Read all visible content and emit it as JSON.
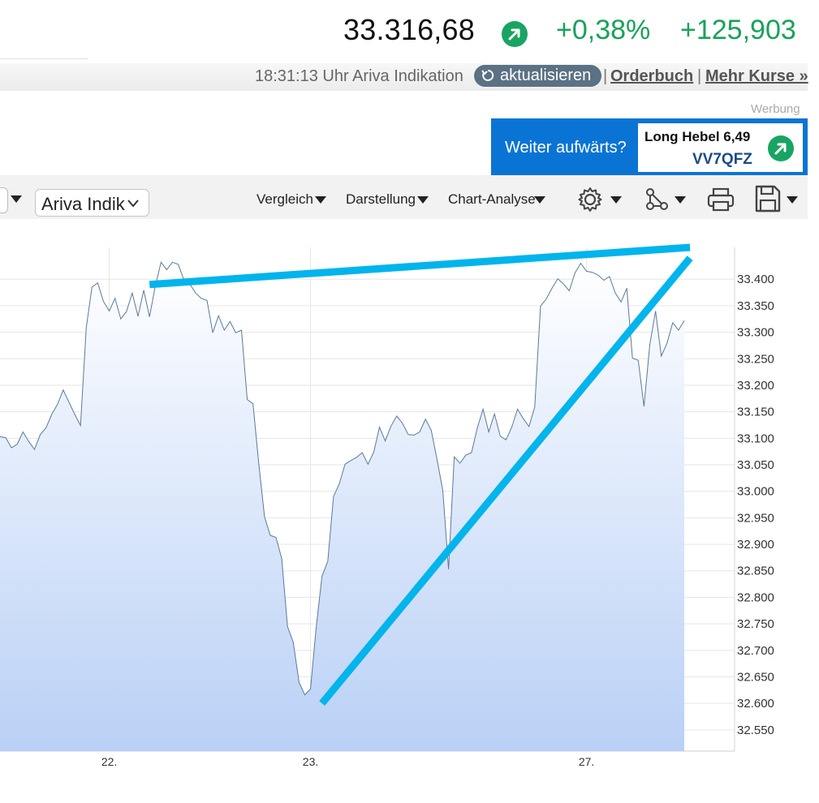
{
  "quote": {
    "price": "33.316,68",
    "change_percent": "+0,38%",
    "change_absolute": "+125,903",
    "trend_icon": "arrow-up-right-icon",
    "positive_color": "#1aa15a"
  },
  "info_bar": {
    "timestamp": "18:31:13 Uhr Ariva Indikation",
    "refresh_label": "aktualisieren",
    "separator": "|",
    "orderbook_label": "Orderbuch",
    "more_quotes_label": "Mehr Kurse »"
  },
  "ad": {
    "label": "Werbung",
    "text": "Weiter aufwärts?",
    "product": "Long Hebel 6,49",
    "code": "VV7QFZ",
    "background_color": "#0a74d4"
  },
  "toolbar": {
    "source_select_value": "Ariva Indik",
    "compare_label": "Vergleich",
    "display_label": "Darstellung",
    "analysis_label": "Chart-Analyse",
    "icons": [
      "gear-icon",
      "network-icon",
      "printer-icon",
      "save-icon"
    ]
  },
  "chart_data": {
    "type": "area",
    "title": "",
    "xlabel": "",
    "ylabel": "",
    "x_tick_labels": [
      "22.",
      "23.",
      "27."
    ],
    "y_tick_labels": [
      "33.400",
      "33.350",
      "33.300",
      "33.250",
      "33.200",
      "33.150",
      "33.100",
      "33.050",
      "33.000",
      "32.950",
      "32.900",
      "32.850",
      "32.800",
      "32.750",
      "32.700",
      "32.650",
      "32.600",
      "32.550"
    ],
    "ylim": [
      32.51,
      33.46
    ],
    "y_tick_values": [
      33400,
      33350,
      33300,
      33250,
      33200,
      33150,
      33100,
      33050,
      33000,
      32950,
      32900,
      32850,
      32800,
      32750,
      32700,
      32650,
      32600,
      32550
    ],
    "grid": true,
    "series": [
      {
        "values": [
          33103,
          33101,
          33082,
          33089,
          33112,
          33094,
          33079,
          33107,
          33120,
          33145,
          33164,
          33191,
          33168,
          33145,
          33124,
          33309,
          33385,
          33393,
          33358,
          33340,
          33364,
          33325,
          33339,
          33374,
          33330,
          33379,
          33329,
          33387,
          33432,
          33418,
          33432,
          33428,
          33398,
          33391,
          33374,
          33364,
          33360,
          33299,
          33331,
          33304,
          33320,
          33299,
          33304,
          33173,
          33165,
          33052,
          32952,
          32917,
          32913,
          32873,
          32745,
          32715,
          32640,
          32616,
          32627,
          32744,
          32840,
          32868,
          32990,
          33014,
          33051,
          33058,
          33064,
          33073,
          33051,
          33074,
          33121,
          33095,
          33123,
          33142,
          33128,
          33107,
          33106,
          33112,
          33136,
          33115,
          33060,
          33002,
          32853,
          33065,
          33053,
          33068,
          33073,
          33119,
          33155,
          33112,
          33146,
          33104,
          33097,
          33121,
          33155,
          33137,
          33122,
          33159,
          33349,
          33363,
          33383,
          33401,
          33391,
          33378,
          33412,
          33430,
          33415,
          33413,
          33408,
          33398,
          33405,
          33374,
          33357,
          33383,
          33251,
          33247,
          33160,
          33276,
          33340,
          33255,
          33279,
          33318,
          33304,
          33322
        ],
        "color": "#5a7a9c"
      }
    ],
    "annotations": [
      {
        "type": "trend-line",
        "from": {
          "index": 26,
          "value": 33390
        },
        "to": {
          "index": 120,
          "value": 33460
        },
        "color": "#00b4ec"
      },
      {
        "type": "trend-line",
        "from": {
          "index": 56,
          "value": 32600
        },
        "to": {
          "index": 120,
          "value": 33440
        },
        "color": "#00b4ec"
      }
    ]
  }
}
